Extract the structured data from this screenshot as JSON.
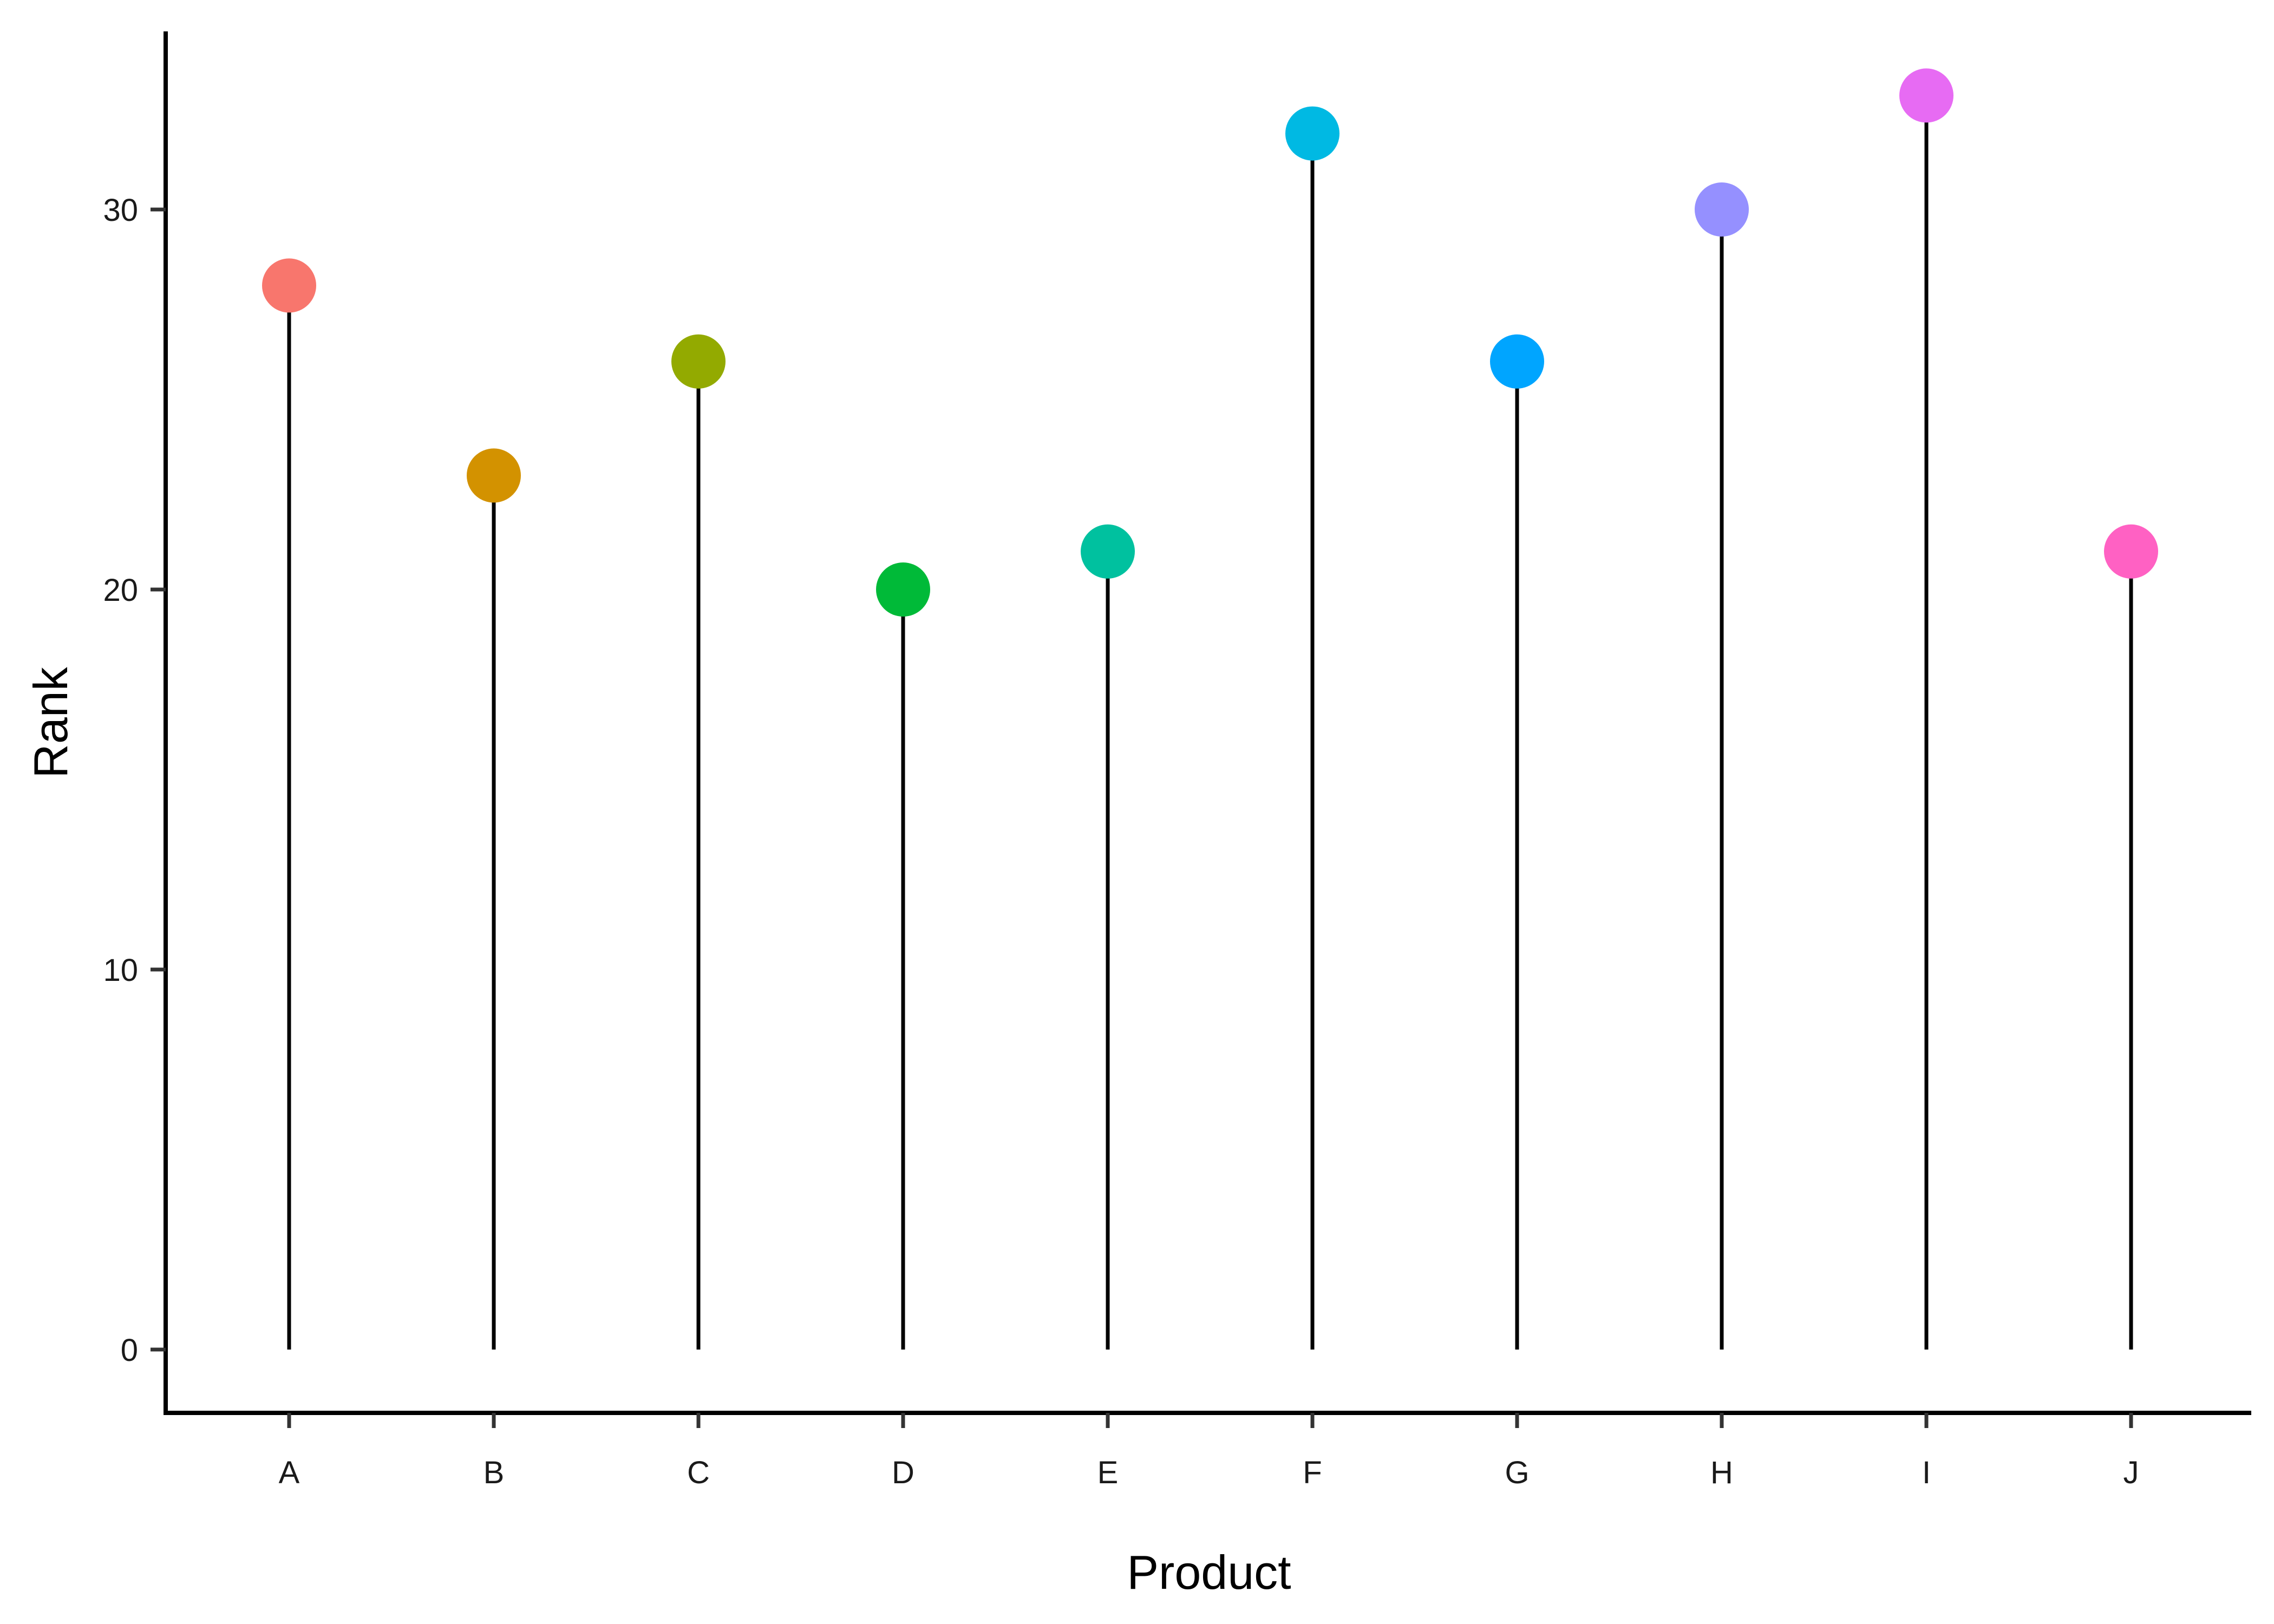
{
  "chart_data": {
    "type": "lollipop",
    "xlabel": "Product",
    "ylabel": "Rank",
    "categories": [
      "A",
      "B",
      "C",
      "D",
      "E",
      "F",
      "G",
      "H",
      "I",
      "J"
    ],
    "values": [
      28,
      23,
      26,
      20,
      21,
      32,
      26,
      30,
      33,
      21
    ],
    "colors": [
      "#F8766D",
      "#D39200",
      "#93AA00",
      "#00BA38",
      "#00C19F",
      "#00B9E3",
      "#00A5FF",
      "#9590FF",
      "#E76BF3",
      "#FF61C3"
    ],
    "yticks": [
      0,
      10,
      20,
      30
    ],
    "ylim": [
      -1.6,
      34.5
    ],
    "grid": false,
    "legend": "none"
  }
}
